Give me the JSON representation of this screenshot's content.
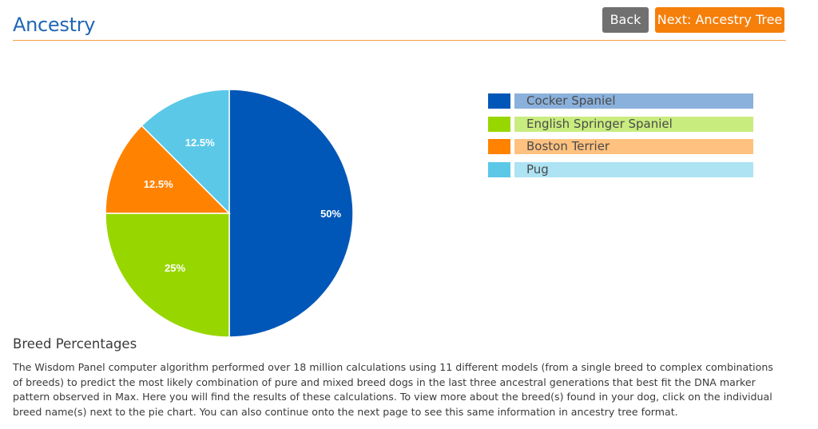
{
  "header": {
    "title": "Ancestry",
    "back_label": "Back",
    "next_label": "Next: Ancestry Tree"
  },
  "chart_data": {
    "type": "pie",
    "categories": [
      "Cocker Spaniel",
      "English Springer Spaniel",
      "Boston Terrier",
      "Pug"
    ],
    "values": [
      50,
      25,
      12.5,
      12.5
    ],
    "labels": [
      "50%",
      "25%",
      "12.5%",
      "12.5%"
    ],
    "colors": [
      "#0057b8",
      "#98d600",
      "#ff8200",
      "#5bc8e8"
    ],
    "title": "",
    "legend_position": "right"
  },
  "legend": {
    "items": [
      {
        "label": "Cocker Spaniel",
        "color": "#0057b8",
        "bg": "#8ab0dc"
      },
      {
        "label": "English Springer Spaniel",
        "color": "#98d600",
        "bg": "#c9ec7f"
      },
      {
        "label": "Boston Terrier",
        "color": "#ff8200",
        "bg": "#ffc17f"
      },
      {
        "label": "Pug",
        "color": "#5bc8e8",
        "bg": "#ade3f3"
      }
    ]
  },
  "breed_percentages": {
    "heading": "Breed Percentages",
    "body": "The Wisdom Panel computer algorithm performed over 18 million calculations using 11 different models (from a single breed to complex combinations of breeds) to predict the most likely combination of pure and mixed breed dogs in the last three ancestral generations that best fit the DNA marker pattern observed in Max. Here you will find the results of these calculations. To view more about the breed(s) found in your dog, click on the individual breed name(s) next to the pie chart. You can also continue onto the next page to see this same information in ancestry tree format."
  }
}
